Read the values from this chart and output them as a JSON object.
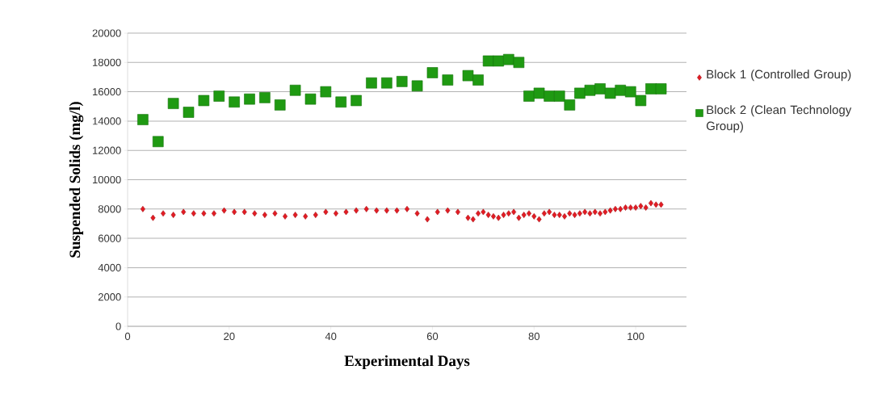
{
  "chart_data": {
    "type": "scatter",
    "xlabel": "Experimental Days",
    "ylabel": "Suspended Solids  (mg/l)",
    "xlim": [
      0,
      110
    ],
    "xticks": [
      0,
      20,
      40,
      60,
      80,
      100
    ],
    "ylim": [
      0,
      20000
    ],
    "yticks": [
      0,
      2000,
      4000,
      6000,
      8000,
      10000,
      12000,
      14000,
      16000,
      18000,
      20000
    ],
    "grid": "y",
    "legend": "right",
    "series": [
      {
        "name": "Block 1 (Controlled Group)",
        "color": "#e31b23",
        "marker": "diamond",
        "x": [
          3,
          5,
          7,
          9,
          11,
          13,
          15,
          17,
          19,
          21,
          23,
          25,
          27,
          29,
          31,
          33,
          35,
          37,
          39,
          41,
          43,
          45,
          47,
          49,
          51,
          53,
          55,
          57,
          59,
          61,
          63,
          65,
          67,
          68,
          69,
          70,
          71,
          72,
          73,
          74,
          75,
          76,
          77,
          78,
          79,
          80,
          81,
          82,
          83,
          84,
          85,
          86,
          87,
          88,
          89,
          90,
          91,
          92,
          93,
          94,
          95,
          96,
          97,
          98,
          99,
          100,
          101,
          102,
          103,
          104,
          105
        ],
        "values": [
          8000,
          7400,
          7700,
          7600,
          7800,
          7700,
          7700,
          7700,
          7900,
          7800,
          7800,
          7700,
          7600,
          7700,
          7500,
          7600,
          7500,
          7600,
          7800,
          7700,
          7800,
          7900,
          8000,
          7900,
          7900,
          7900,
          8000,
          7700,
          7300,
          7800,
          7900,
          7800,
          7400,
          7300,
          7700,
          7800,
          7600,
          7500,
          7400,
          7600,
          7700,
          7800,
          7400,
          7600,
          7700,
          7500,
          7300,
          7700,
          7800,
          7600,
          7600,
          7500,
          7700,
          7600,
          7700,
          7800,
          7700,
          7800,
          7700,
          7800,
          7900,
          8000,
          8000,
          8100,
          8100,
          8100,
          8200,
          8100,
          8400,
          8300,
          8300
        ]
      },
      {
        "name": "Block 2 (Clean Technology Group)",
        "color": "#1f9a12",
        "marker": "square",
        "x": [
          3,
          6,
          9,
          12,
          15,
          18,
          21,
          24,
          27,
          30,
          33,
          36,
          39,
          42,
          45,
          48,
          51,
          54,
          57,
          60,
          63,
          67,
          69,
          71,
          73,
          75,
          77,
          79,
          81,
          83,
          85,
          87,
          89,
          91,
          93,
          95,
          97,
          99,
          101,
          103,
          105
        ],
        "values": [
          14100,
          12600,
          15200,
          14600,
          15400,
          15700,
          15300,
          15500,
          15600,
          15100,
          16100,
          15500,
          16000,
          15300,
          15400,
          16600,
          16600,
          16700,
          16400,
          17300,
          16800,
          17100,
          16800,
          18100,
          18100,
          18200,
          18000,
          15700,
          15900,
          15700,
          15700,
          15100,
          15900,
          16100,
          16200,
          15900,
          16100,
          16000,
          15400,
          16200,
          16200
        ]
      }
    ]
  }
}
